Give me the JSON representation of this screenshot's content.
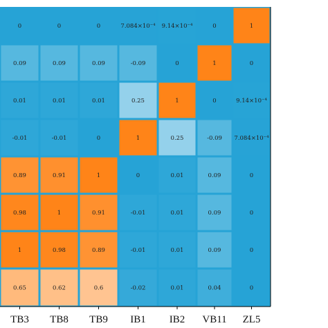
{
  "chart_data": {
    "type": "heatmap",
    "columns": [
      "TB3",
      "TB8",
      "TB9",
      "IB1",
      "IB2",
      "VB11",
      "ZL5"
    ],
    "rows": [
      [
        "0",
        "0",
        "0",
        "7.084×10⁻⁴",
        "9.14×10⁻⁴",
        "0",
        "1"
      ],
      [
        "0.09",
        "0.09",
        "0.09",
        "-0.09",
        "0",
        "1",
        "0"
      ],
      [
        "0.01",
        "0.01",
        "0.01",
        "0.25",
        "1",
        "0",
        "9.14×10⁻⁴"
      ],
      [
        "-0.01",
        "-0.01",
        "0",
        "1",
        "0.25",
        "-0.09",
        "7.084×10⁻⁴"
      ],
      [
        "0.89",
        "0.91",
        "1",
        "0",
        "0.01",
        "0.09",
        "0"
      ],
      [
        "0.98",
        "1",
        "0.91",
        "-0.01",
        "0.01",
        "0.09",
        "0"
      ],
      [
        "1",
        "0.98",
        "0.89",
        "-0.01",
        "0.01",
        "0.09",
        "0"
      ],
      [
        "0.65",
        "0.62",
        "0.6",
        "-0.02",
        "0.01",
        "0.04",
        "0"
      ]
    ],
    "values": [
      [
        0,
        0,
        0,
        0.0007084,
        0.000914,
        0,
        1
      ],
      [
        0.09,
        0.09,
        0.09,
        -0.09,
        0,
        1,
        0
      ],
      [
        0.01,
        0.01,
        0.01,
        0.25,
        1,
        0,
        0.000914
      ],
      [
        -0.01,
        -0.01,
        0,
        1,
        0.25,
        -0.09,
        0.0007084
      ],
      [
        0.89,
        0.91,
        1,
        0,
        0.01,
        0.09,
        0
      ],
      [
        0.98,
        1,
        0.91,
        -0.01,
        0.01,
        0.09,
        0
      ],
      [
        1,
        0.98,
        0.89,
        -0.01,
        0.01,
        0.09,
        0
      ],
      [
        0.65,
        0.62,
        0.6,
        -0.02,
        0.01,
        0.04,
        0
      ]
    ],
    "colormap": {
      "low": "#26a3d6",
      "high": "#ff7f0e"
    },
    "text_color": "#222222",
    "title": "",
    "xlabel": "",
    "ylabel": ""
  }
}
